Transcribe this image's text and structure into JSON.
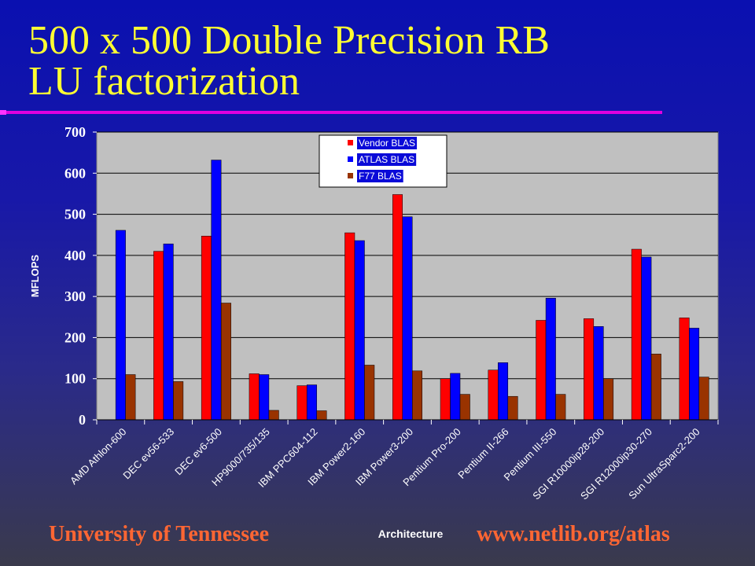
{
  "slide": {
    "title_line1": "500 x 500 Double Precision RB",
    "title_line2": "LU factorization",
    "footer_left": "University of Tennessee",
    "footer_right": "www.netlib.org/atlas"
  },
  "colors": {
    "background": "#1a1aa8",
    "title": "#ffff33",
    "rule": "#e000e0",
    "footer": "#ff6633",
    "plot_area": "#c0c0c0"
  },
  "chart_data": {
    "type": "bar",
    "title": "",
    "xlabel": "Architecture",
    "ylabel": "MFLOPS",
    "ylim": [
      0,
      700
    ],
    "yticks": [
      0,
      100,
      200,
      300,
      400,
      500,
      600,
      700
    ],
    "grid": true,
    "legend_position": "top-center",
    "categories": [
      "AMD Athlon-600",
      "DEC ev56-533",
      "DEC ev6-500",
      "HP9000/735/135",
      "IBM PPC604-112",
      "IBM Power2-160",
      "IBM Power3-200",
      "Pentium Pro-200",
      "Pentium II-266",
      "Pentium III-550",
      "SGI R10000ip28-200",
      "SGI R12000ip30-270",
      "Sun UltraSparc2-200"
    ],
    "series": [
      {
        "name": "Vendor BLAS",
        "color": "#ff0000",
        "values": [
          null,
          410,
          447,
          112,
          83,
          455,
          548,
          100,
          121,
          242,
          246,
          415,
          248
        ]
      },
      {
        "name": "ATLAS BLAS",
        "color": "#0000ff",
        "values": [
          461,
          428,
          632,
          110,
          85,
          436,
          494,
          113,
          139,
          296,
          227,
          396,
          223
        ]
      },
      {
        "name": "F77 BLAS",
        "color": "#993300",
        "values": [
          110,
          93,
          284,
          23,
          22,
          133,
          119,
          62,
          57,
          62,
          100,
          160,
          104
        ]
      }
    ]
  }
}
